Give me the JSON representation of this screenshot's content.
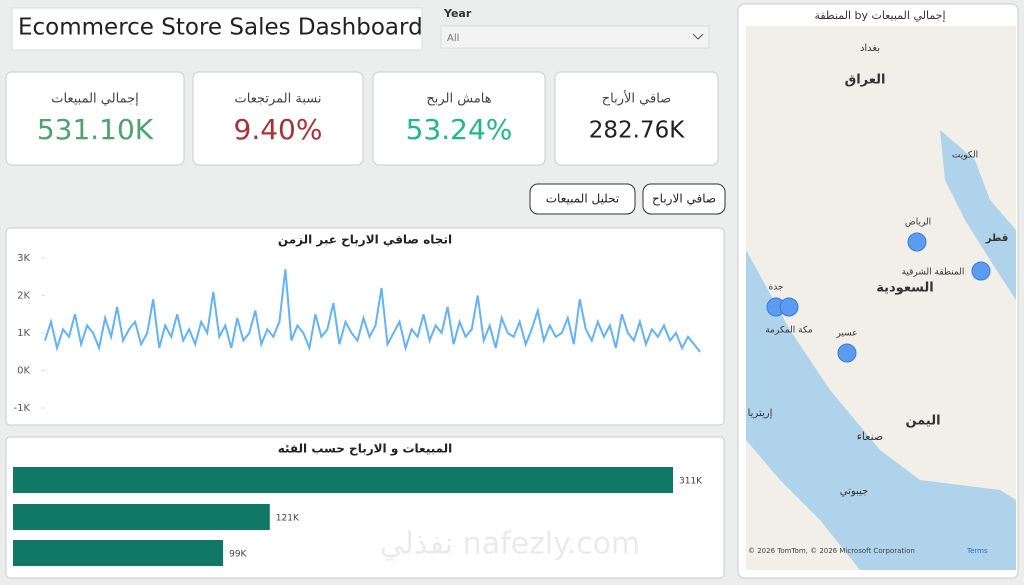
{
  "header": {
    "title": "Ecommerce Store Sales Dashboard"
  },
  "filter": {
    "label": "Year",
    "value": "All"
  },
  "kpis": [
    {
      "label": "إجمالي المبيعات",
      "value": "531.10K"
    },
    {
      "label": "نسبة المرتجعات",
      "value": "9.40%"
    },
    {
      "label": "هامش الربح",
      "value": "53.24%"
    },
    {
      "label": "صافي الأرباح",
      "value": "282.76K"
    }
  ],
  "buttons": [
    "تحليل المبيعات",
    "صافي الارباح"
  ],
  "chart_data": [
    {
      "type": "line",
      "title": "اتجاه صافي الارباح عبر الزمن",
      "color": "#64b2f7",
      "ylim": [
        -1000,
        3000
      ],
      "yticks": [
        {
          "value": -1000,
          "label": "-1K"
        },
        {
          "value": 0,
          "label": "0K"
        },
        {
          "value": 1000,
          "label": "1K"
        },
        {
          "value": 2000,
          "label": "2K"
        },
        {
          "value": 3000,
          "label": "3K"
        }
      ],
      "values": [
        800,
        1300,
        600,
        1100,
        900,
        1500,
        700,
        1200,
        1000,
        600,
        1400,
        900,
        1700,
        800,
        1100,
        1300,
        700,
        1000,
        1900,
        600,
        1200,
        900,
        1500,
        800,
        1100,
        700,
        1300,
        1000,
        2100,
        900,
        1200,
        600,
        1400,
        800,
        1000,
        1600,
        700,
        1100,
        900,
        1300,
        2700,
        800,
        1200,
        1000,
        600,
        1500,
        900,
        1100,
        1800,
        700,
        1300,
        1000,
        800,
        1400,
        900,
        1200,
        2200,
        700,
        1000,
        1300,
        600,
        1100,
        900,
        1500,
        800,
        1200,
        1000,
        1700,
        700,
        1300,
        900,
        1100,
        2000,
        800,
        1200,
        600,
        1400,
        1000,
        900,
        1300,
        700,
        1100,
        1600,
        800,
        1200,
        900,
        1000,
        1400,
        700,
        1900,
        1100,
        800,
        1300,
        900,
        1200,
        600,
        1500,
        1000,
        800,
        1300,
        700,
        1100,
        900,
        1200,
        800,
        1000,
        600,
        900,
        700,
        500
      ]
    },
    {
      "type": "bar",
      "title": "المبيعات و الارباح حسب الفئه",
      "color": "#117865",
      "categories": [
        null,
        null,
        null
      ],
      "values": [
        311,
        121,
        99
      ],
      "value_labels": [
        "311K",
        "121K",
        "99K"
      ]
    }
  ],
  "map": {
    "title": "المنطقة by إجمالي المبيعات",
    "places": [
      "العراق",
      "بغداد",
      "الكويت",
      "قطر",
      "الرياض",
      "المنطقة الشرقية",
      "السعودية",
      "جدة",
      "مكة المكرمة",
      "عسير",
      "اليمن",
      "صنعاء",
      "إريتريا",
      "جيبوتي"
    ],
    "footer": "© 2026 TomTom, © 2026 Microsoft Corporation",
    "terms": "Terms"
  },
  "watermark": "نفذلي nafezly.com"
}
